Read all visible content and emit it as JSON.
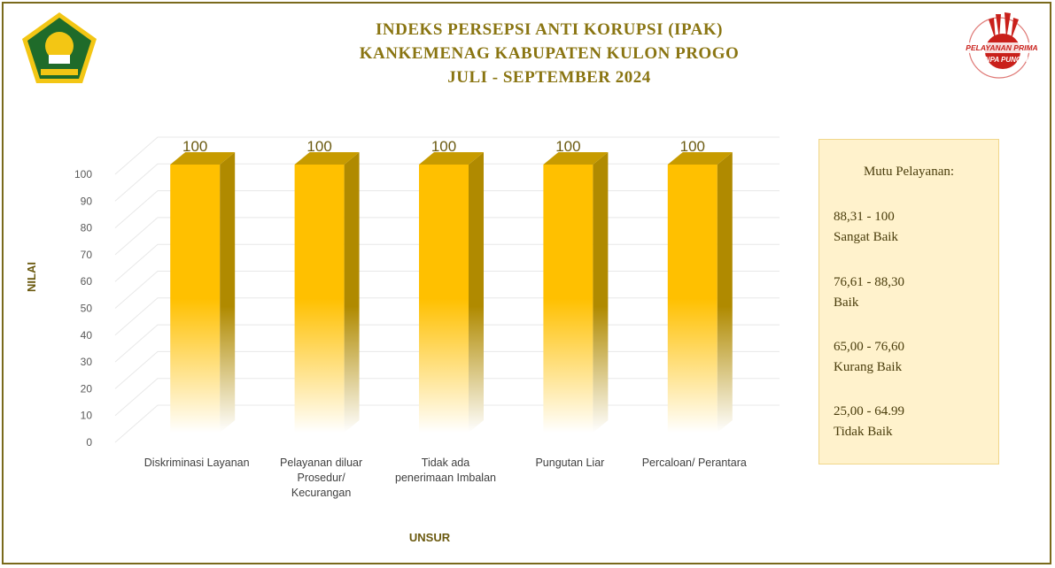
{
  "title": {
    "line1": "INDEKS PERSEPSI ANTI KORUPSI (IPAK)",
    "line2": "KANKEMENAG KABUPATEN KULON PROGO",
    "line3": "JULI - SEPTEMBER 2024"
  },
  "logos": {
    "left_name": "kemenag-logo",
    "right_text_1": "PELAYANAN PRIMA",
    "right_text_2": "TANPA PUNGLI"
  },
  "legend": {
    "heading": "Mutu Pelayanan:",
    "items": [
      {
        "range": "88,31 - 100",
        "label": "Sangat Baik"
      },
      {
        "range": "76,61 - 88,30",
        "label": "Baik"
      },
      {
        "range": "65,00 - 76,60",
        "label": "Kurang Baik"
      },
      {
        "range": "25,00 - 64.99",
        "label": "Tidak Baik"
      }
    ]
  },
  "chart_data": {
    "type": "bar",
    "title": "",
    "xlabel": "UNSUR",
    "ylabel": "NILAI",
    "ylim": [
      0,
      100
    ],
    "yticks": [
      0,
      10,
      20,
      30,
      40,
      50,
      60,
      70,
      80,
      90,
      100
    ],
    "categories": [
      [
        "Diskriminasi Layanan"
      ],
      [
        "Pelayanan diluar",
        "Prosedur/",
        "Kecurangan"
      ],
      [
        "Tidak ada",
        "penerimaan Imbalan"
      ],
      [
        "Pungutan Liar"
      ],
      [
        "Percaloan/ Perantara"
      ]
    ],
    "values": [
      100,
      100,
      100,
      100,
      100
    ],
    "data_labels": [
      "100",
      "100",
      "100",
      "100",
      "100"
    ],
    "bar_color": "#ffc000",
    "grid": true
  }
}
